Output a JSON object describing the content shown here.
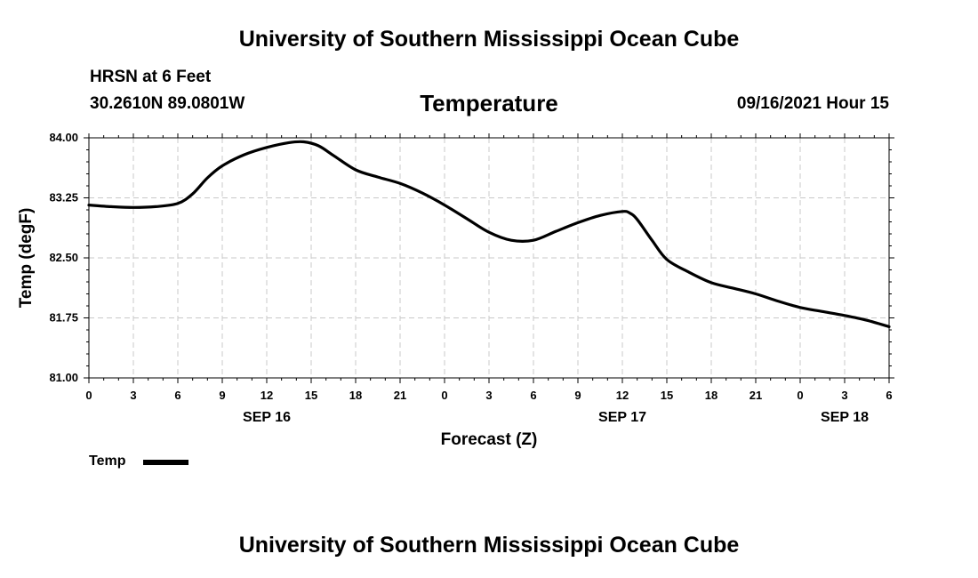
{
  "header": {
    "title_top": "University of Southern Mississippi Ocean Cube",
    "station": "HRSN at 6 Feet",
    "coords": "30.2610N  89.0801W",
    "chart_title": "Temperature",
    "datetime": "09/16/2021 Hour 15"
  },
  "footer": {
    "title_bottom": "University of Southern Mississippi Ocean Cube"
  },
  "legend": {
    "label": "Temp",
    "color": "#000000"
  },
  "chart_data": {
    "type": "line",
    "title": "Temperature",
    "xlabel": "Forecast (Z)",
    "ylabel": "Temp (degF)",
    "ylim": [
      81.0,
      84.0
    ],
    "yticks": [
      "81.00",
      "81.75",
      "82.50",
      "83.25",
      "84.00"
    ],
    "xlim": [
      0,
      54
    ],
    "xtick_labels": [
      "0",
      "3",
      "6",
      "9",
      "12",
      "15",
      "18",
      "21",
      "0",
      "3",
      "6",
      "9",
      "12",
      "15",
      "18",
      "21",
      "0",
      "3",
      "6"
    ],
    "date_labels": [
      {
        "label": "SEP 16",
        "hour": 12
      },
      {
        "label": "SEP 17",
        "hour": 36
      },
      {
        "label": "SEP 18",
        "hour": 51
      }
    ],
    "grid": true,
    "series": [
      {
        "name": "Temp",
        "color": "#000000",
        "x": [
          0,
          1.5,
          3,
          4.5,
          6,
          7,
          8,
          9,
          10.5,
          12,
          13.5,
          14.5,
          15.5,
          16.5,
          18,
          19.5,
          21,
          22.5,
          24,
          25.5,
          27,
          28.5,
          30,
          31.5,
          33,
          34.5,
          36,
          36.5,
          37,
          38,
          39,
          40.5,
          42,
          43.5,
          45,
          46.5,
          48,
          49.5,
          51,
          52.5,
          54
        ],
        "values": [
          83.16,
          83.14,
          83.13,
          83.14,
          83.18,
          83.3,
          83.5,
          83.65,
          83.79,
          83.88,
          83.94,
          83.95,
          83.9,
          83.78,
          83.6,
          83.51,
          83.43,
          83.31,
          83.16,
          82.99,
          82.82,
          82.72,
          82.72,
          82.83,
          82.94,
          83.03,
          83.08,
          83.06,
          82.98,
          82.72,
          82.48,
          82.32,
          82.19,
          82.12,
          82.05,
          81.96,
          81.88,
          81.83,
          81.78,
          81.72,
          81.64
        ]
      }
    ]
  }
}
